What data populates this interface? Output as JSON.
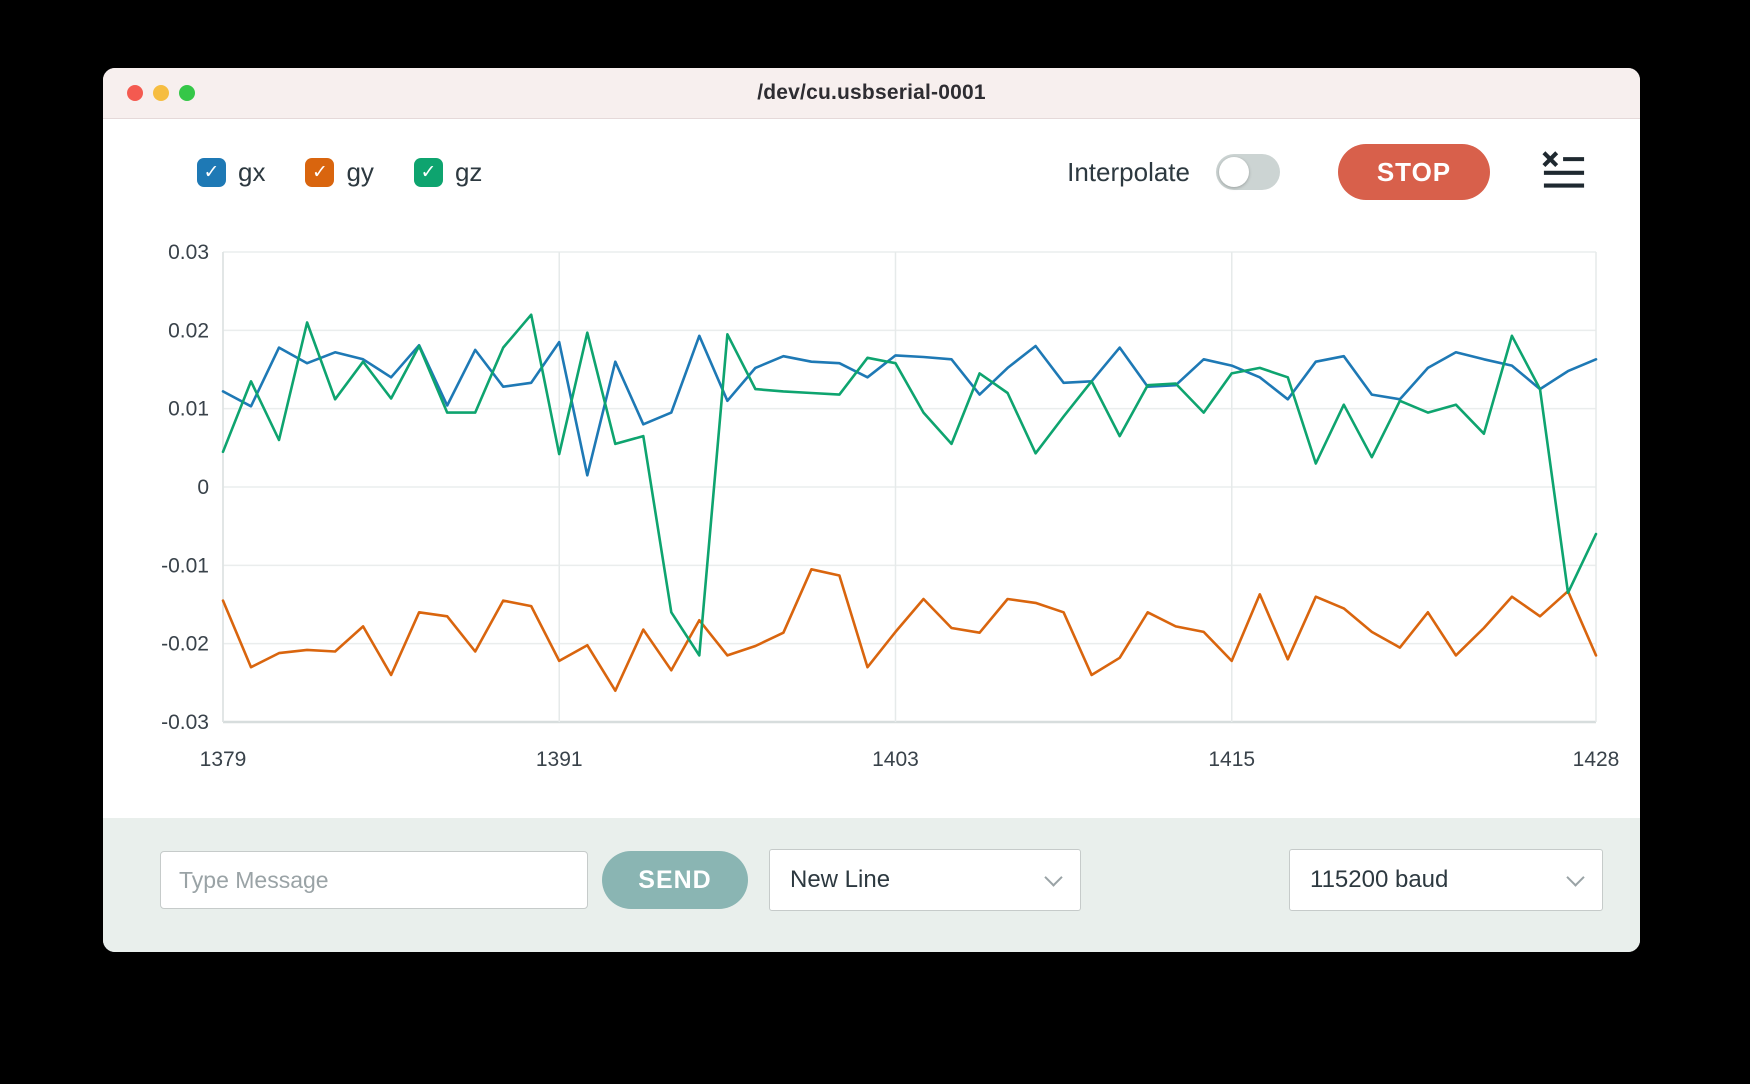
{
  "window": {
    "title": "/dev/cu.usbserial-0001"
  },
  "toolbar": {
    "legend": {
      "items": [
        {
          "label": "gx",
          "checked": true,
          "color": "#1e79b5"
        },
        {
          "label": "gy",
          "checked": true,
          "color": "#d9650e"
        },
        {
          "label": "gz",
          "checked": true,
          "color": "#0ea46f"
        }
      ]
    },
    "interpolate_label": "Interpolate",
    "interpolate_on": false,
    "stop_label": "STOP",
    "log_icon": "clear-log-icon"
  },
  "chart_data": {
    "type": "line",
    "title": "",
    "xlabel": "",
    "ylabel": "",
    "grid": true,
    "legend_position": "top-left",
    "xlim": [
      1379,
      1428
    ],
    "ylim": [
      -0.03,
      0.03
    ],
    "xticks": [
      1379,
      1391,
      1403,
      1415,
      1428
    ],
    "yticks": [
      0.03,
      0.02,
      0.01,
      0,
      -0.01,
      -0.02,
      -0.03
    ],
    "x": [
      1379,
      1380,
      1381,
      1382,
      1383,
      1384,
      1385,
      1386,
      1387,
      1388,
      1389,
      1390,
      1391,
      1392,
      1393,
      1394,
      1395,
      1396,
      1397,
      1398,
      1399,
      1400,
      1401,
      1402,
      1403,
      1404,
      1405,
      1406,
      1407,
      1408,
      1409,
      1410,
      1411,
      1412,
      1413,
      1414,
      1415,
      1416,
      1417,
      1418,
      1419,
      1420,
      1421,
      1422,
      1423,
      1424,
      1425,
      1426,
      1427,
      1428
    ],
    "series": [
      {
        "name": "gx",
        "color": "#1e79b5",
        "values": [
          0.0122,
          0.0103,
          0.0178,
          0.0158,
          0.0172,
          0.0163,
          0.014,
          0.0181,
          0.0104,
          0.0175,
          0.0128,
          0.0133,
          0.0185,
          0.0015,
          0.016,
          0.008,
          0.0095,
          0.0193,
          0.011,
          0.0152,
          0.0167,
          0.016,
          0.0158,
          0.014,
          0.0168,
          0.0166,
          0.0163,
          0.0118,
          0.0152,
          0.018,
          0.0133,
          0.0135,
          0.0178,
          0.0128,
          0.013,
          0.0163,
          0.0155,
          0.014,
          0.0112,
          0.016,
          0.0167,
          0.0118,
          0.0112,
          0.0152,
          0.0172,
          0.0163,
          0.0155,
          0.0125,
          0.0148,
          0.0163
        ]
      },
      {
        "name": "gy",
        "color": "#d9650e",
        "values": [
          -0.0145,
          -0.023,
          -0.0212,
          -0.0208,
          -0.021,
          -0.0178,
          -0.024,
          -0.016,
          -0.0165,
          -0.021,
          -0.0145,
          -0.0152,
          -0.0222,
          -0.0202,
          -0.026,
          -0.0182,
          -0.0234,
          -0.017,
          -0.0215,
          -0.0203,
          -0.0186,
          -0.0105,
          -0.0113,
          -0.023,
          -0.0185,
          -0.0143,
          -0.018,
          -0.0186,
          -0.0143,
          -0.0148,
          -0.016,
          -0.024,
          -0.0218,
          -0.016,
          -0.0178,
          -0.0185,
          -0.0222,
          -0.0137,
          -0.022,
          -0.014,
          -0.0155,
          -0.0185,
          -0.0205,
          -0.016,
          -0.0215,
          -0.018,
          -0.014,
          -0.0165,
          -0.0133,
          -0.0215
        ]
      },
      {
        "name": "gz",
        "color": "#0ea46f",
        "values": [
          0.0045,
          0.0135,
          0.006,
          0.021,
          0.0112,
          0.016,
          0.0113,
          0.018,
          0.0095,
          0.0095,
          0.0178,
          0.022,
          0.0042,
          0.0197,
          0.0055,
          0.0065,
          -0.016,
          -0.0215,
          0.0195,
          0.0125,
          0.0122,
          0.012,
          0.0118,
          0.0165,
          0.0158,
          0.0095,
          0.0055,
          0.0145,
          0.012,
          0.0043,
          0.009,
          0.0135,
          0.0065,
          0.013,
          0.0132,
          0.0095,
          0.0145,
          0.0152,
          0.014,
          0.003,
          0.0105,
          0.0038,
          0.011,
          0.0095,
          0.0105,
          0.0068,
          0.0193,
          0.0125,
          -0.0135,
          -0.006
        ]
      }
    ]
  },
  "bottom_bar": {
    "message_placeholder": "Type Message",
    "send_label": "SEND",
    "line_ending": "New Line",
    "baud_rate": "115200 baud"
  }
}
